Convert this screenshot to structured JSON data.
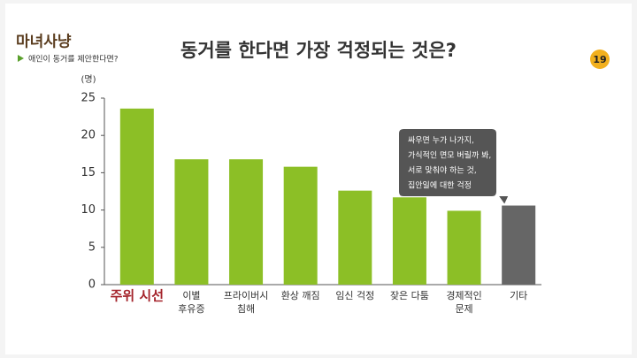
{
  "logo": {
    "title": "마녀사냥",
    "subtitle": "애인이 동거를 제안한다면?"
  },
  "badge": "19",
  "chart_data": {
    "type": "bar",
    "title": "동거를 한다면 가장 걱정되는 것은?",
    "y_label": "(명)",
    "categories": [
      [
        "주위 시선"
      ],
      [
        "이별",
        "후유증"
      ],
      [
        "프라이버시",
        "침해"
      ],
      [
        "환상 깨짐"
      ],
      [
        "임신 걱정"
      ],
      [
        "잦은 다툼"
      ],
      [
        "경제적인",
        "문제"
      ],
      [
        "기타"
      ]
    ],
    "values": [
      23.6,
      16.8,
      16.8,
      15.8,
      12.6,
      11.7,
      9.9,
      10.6
    ],
    "colors": [
      "#8cbf26",
      "#8cbf26",
      "#8cbf26",
      "#8cbf26",
      "#8cbf26",
      "#8cbf26",
      "#8cbf26",
      "#666666"
    ],
    "label_colors": [
      "#a4232b",
      "#333333",
      "#333333",
      "#333333",
      "#333333",
      "#333333",
      "#333333",
      "#333333"
    ],
    "ylim": [
      0,
      25
    ],
    "yticks": [
      0,
      5,
      10,
      15,
      20,
      25
    ],
    "annotation": {
      "category": 7,
      "lines": [
        "싸우면 누가 나가지,",
        "가식적인 면모 버릴까 봐,",
        "서로 맞춰야 하는 것,",
        "집안일에 대한 걱정"
      ]
    }
  }
}
